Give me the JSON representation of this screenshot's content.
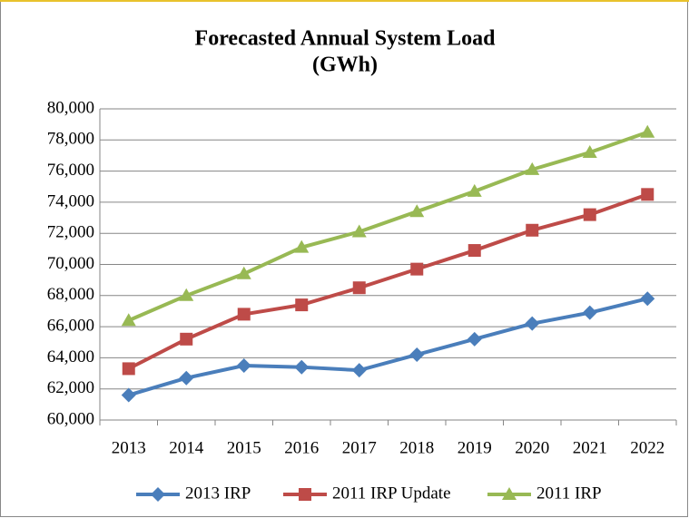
{
  "chart_data": {
    "type": "line",
    "title": "Forecasted Annual System Load",
    "subtitle": "(GWh)",
    "categories": [
      "2013",
      "2014",
      "2015",
      "2016",
      "2017",
      "2018",
      "2019",
      "2020",
      "2021",
      "2022"
    ],
    "series": [
      {
        "name": "2013 IRP",
        "color": "#4a7ebb",
        "marker": "diamond",
        "values": [
          61600,
          62700,
          63500,
          63400,
          63200,
          64200,
          65200,
          66200,
          66900,
          67800
        ]
      },
      {
        "name": "2011 IRP Update",
        "color": "#be4b48",
        "marker": "square",
        "values": [
          63300,
          65200,
          66800,
          67400,
          68500,
          69700,
          70900,
          72200,
          73200,
          74500
        ]
      },
      {
        "name": "2011 IRP",
        "color": "#98b954",
        "marker": "triangle",
        "values": [
          66400,
          68000,
          69400,
          71100,
          72100,
          73400,
          74700,
          76100,
          77200,
          78500
        ]
      }
    ],
    "ylim": [
      60000,
      80000
    ],
    "yticks": [
      {
        "value": 60000,
        "label": "60,000"
      },
      {
        "value": 62000,
        "label": "62,000"
      },
      {
        "value": 64000,
        "label": "64,000"
      },
      {
        "value": 66000,
        "label": "66,000"
      },
      {
        "value": 68000,
        "label": "68,000"
      },
      {
        "value": 70000,
        "label": "70,000"
      },
      {
        "value": 72000,
        "label": "72,000"
      },
      {
        "value": 74000,
        "label": "74,000"
      },
      {
        "value": 76000,
        "label": "76,000"
      },
      {
        "value": 78000,
        "label": "78,000"
      },
      {
        "value": 80000,
        "label": "80,000"
      }
    ],
    "grid": true,
    "legend": "bottom"
  }
}
